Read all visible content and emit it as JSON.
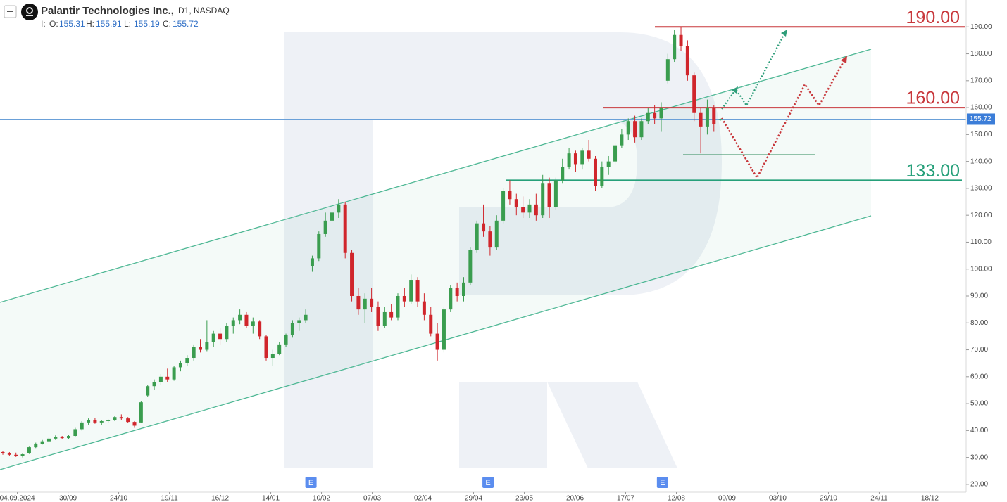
{
  "chart_data": {
    "type": "candlestick",
    "title": "Palantir Technologies Inc.,",
    "interval": "D1,",
    "exchange": "NASDAQ",
    "ohlc_prefix": "I:",
    "ohlc_labels": [
      "O:",
      "H:",
      "L:",
      "C:"
    ],
    "up_color": "#3a9d4f",
    "down_color": "#d0262c",
    "grid": false,
    "candles": [
      [
        32,
        32.5,
        31,
        31.5
      ],
      [
        31.5,
        32,
        30.5,
        31
      ],
      [
        31,
        31.8,
        30.2,
        30.6
      ],
      [
        30.6,
        31.5,
        30,
        31.2
      ],
      [
        31.5,
        34,
        31.3,
        33.8
      ],
      [
        33.8,
        35.5,
        33.5,
        35
      ],
      [
        35,
        36.5,
        34.8,
        36
      ],
      [
        36,
        37.5,
        35.5,
        37
      ],
      [
        37,
        38.2,
        36.5,
        37.5
      ],
      [
        37.5,
        38,
        36.8,
        37.2
      ],
      [
        37.2,
        38.5,
        36.9,
        38
      ],
      [
        38,
        41,
        37.8,
        40.5
      ],
      [
        40.5,
        43.5,
        40,
        43
      ],
      [
        43,
        44.5,
        42.2,
        44
      ],
      [
        44,
        44.8,
        42.5,
        43
      ],
      [
        43,
        44,
        42,
        43.5
      ],
      [
        43.5,
        44.2,
        42.8,
        43.8
      ],
      [
        43.8,
        45.5,
        43.5,
        45
      ],
      [
        45,
        46,
        44,
        44.5
      ],
      [
        44.5,
        45,
        42.8,
        43.2
      ],
      [
        43.2,
        43.5,
        41,
        41.8
      ],
      [
        43,
        51,
        42.8,
        50.5
      ],
      [
        53,
        57,
        52.5,
        56.5
      ],
      [
        56.5,
        59,
        55,
        58
      ],
      [
        58,
        61,
        57,
        60
      ],
      [
        60,
        63,
        58,
        59
      ],
      [
        59,
        64,
        58.5,
        63.5
      ],
      [
        63.5,
        66,
        62,
        65
      ],
      [
        65,
        68,
        64,
        67
      ],
      [
        67,
        72,
        66,
        71
      ],
      [
        71,
        74,
        69,
        70
      ],
      [
        70,
        81,
        69.5,
        73
      ],
      [
        73,
        77,
        71,
        76
      ],
      [
        76,
        78,
        72,
        74
      ],
      [
        74,
        80,
        73,
        79
      ],
      [
        79,
        82,
        76,
        81
      ],
      [
        81,
        85,
        79.5,
        83
      ],
      [
        83,
        84,
        78,
        79
      ],
      [
        79,
        82,
        76,
        80.5
      ],
      [
        80.5,
        81,
        74,
        75
      ],
      [
        75,
        75.5,
        66,
        67
      ],
      [
        67,
        70,
        64,
        68.5
      ],
      [
        68.5,
        73,
        68,
        72
      ],
      [
        72,
        76,
        71,
        75.5
      ],
      [
        75.5,
        81,
        74.5,
        80
      ],
      [
        80,
        82,
        77,
        81
      ],
      [
        81,
        85,
        80,
        83
      ],
      [
        101,
        105,
        99,
        104
      ],
      [
        104,
        114,
        103,
        113
      ],
      [
        113,
        121,
        112,
        118
      ],
      [
        118,
        123,
        116,
        121
      ],
      [
        121,
        126,
        119,
        124
      ],
      [
        124,
        125,
        104,
        106
      ],
      [
        106,
        107,
        88,
        90
      ],
      [
        90,
        93,
        83,
        85
      ],
      [
        85,
        91,
        80,
        89
      ],
      [
        89,
        93,
        84,
        86
      ],
      [
        86,
        88,
        77,
        79
      ],
      [
        79,
        86,
        78,
        84
      ],
      [
        84,
        87,
        81,
        82
      ],
      [
        82,
        91,
        81,
        90
      ],
      [
        90,
        93,
        86,
        88
      ],
      [
        88,
        98,
        87,
        96
      ],
      [
        96,
        97,
        86,
        88
      ],
      [
        88,
        91,
        81,
        83
      ],
      [
        83,
        86,
        75,
        76
      ],
      [
        76,
        80,
        66,
        70
      ],
      [
        70,
        86,
        69,
        85
      ],
      [
        85,
        94,
        84,
        93
      ],
      [
        93,
        95,
        88,
        90
      ],
      [
        90,
        97,
        88,
        95
      ],
      [
        95,
        108,
        94,
        107
      ],
      [
        107,
        118,
        106,
        117
      ],
      [
        117,
        124,
        112,
        114
      ],
      [
        114,
        116,
        105,
        108
      ],
      [
        108,
        120,
        107,
        118
      ],
      [
        118,
        130,
        117,
        129
      ],
      [
        129,
        133,
        124,
        126
      ],
      [
        126,
        128,
        120,
        123
      ],
      [
        123,
        127,
        119,
        121
      ],
      [
        121,
        126,
        119,
        124
      ],
      [
        124,
        128,
        118,
        120
      ],
      [
        120,
        135,
        119,
        132
      ],
      [
        132,
        134,
        119,
        123
      ],
      [
        123,
        134,
        122,
        133
      ],
      [
        133,
        141,
        132,
        138
      ],
      [
        138,
        145,
        137,
        143
      ],
      [
        143,
        144,
        136,
        139
      ],
      [
        139,
        145,
        137,
        144
      ],
      [
        144,
        148,
        140,
        141
      ],
      [
        141,
        142,
        129,
        131
      ],
      [
        131,
        140,
        130,
        138
      ],
      [
        138,
        142,
        135,
        140
      ],
      [
        140,
        147,
        139,
        146
      ],
      [
        146,
        152,
        145,
        150
      ],
      [
        150,
        156,
        148,
        155
      ],
      [
        155,
        157,
        147,
        149
      ],
      [
        149,
        156,
        148,
        155
      ],
      [
        155,
        160,
        154,
        158
      ],
      [
        158,
        161,
        154,
        156
      ],
      [
        156,
        162,
        151,
        160
      ],
      [
        170,
        180,
        169,
        178
      ],
      [
        178,
        189,
        177,
        187
      ],
      [
        187,
        190,
        181,
        183
      ],
      [
        183,
        185,
        170,
        172
      ],
      [
        172,
        173,
        155,
        158
      ],
      [
        158,
        160,
        143,
        153
      ],
      [
        153,
        163,
        150,
        160
      ],
      [
        160,
        161,
        151,
        154
      ],
      [
        155.31,
        155.91,
        155.19,
        155.72
      ]
    ],
    "xlim": [
      -0.43,
      146.1
    ],
    "xticks": [
      {
        "value": 2.2,
        "label": "04.09.2024"
      },
      {
        "value": 9.9,
        "label": "30/09"
      },
      {
        "value": 17.6,
        "label": "24/10"
      },
      {
        "value": 25.3,
        "label": "19/11"
      },
      {
        "value": 33.0,
        "label": "16/12"
      },
      {
        "value": 40.7,
        "label": "14/01"
      },
      {
        "value": 48.4,
        "label": "10/02"
      },
      {
        "value": 56.1,
        "label": "07/03"
      },
      {
        "value": 63.8,
        "label": "02/04"
      },
      {
        "value": 71.5,
        "label": "29/04"
      },
      {
        "value": 79.2,
        "label": "23/05"
      },
      {
        "value": 86.9,
        "label": "20/06"
      },
      {
        "value": 94.6,
        "label": "17/07"
      },
      {
        "value": 102.3,
        "label": "12/08"
      },
      {
        "value": 110.0,
        "label": "09/09"
      },
      {
        "value": 117.7,
        "label": "03/10"
      },
      {
        "value": 125.4,
        "label": "29/10"
      },
      {
        "value": 133.1,
        "label": "24/11"
      },
      {
        "value": 140.8,
        "label": "18/12"
      }
    ],
    "ylim": [
      17.1,
      200
    ],
    "yticks": [
      {
        "value": 20,
        "label": "20.00"
      },
      {
        "value": 30,
        "label": "30.00"
      },
      {
        "value": 40,
        "label": "40.00"
      },
      {
        "value": 50,
        "label": "50.00"
      },
      {
        "value": 60,
        "label": "60.00"
      },
      {
        "value": 70,
        "label": "70.00"
      },
      {
        "value": 80,
        "label": "80.00"
      },
      {
        "value": 90,
        "label": "90.00"
      },
      {
        "value": 100,
        "label": "100.00"
      },
      {
        "value": 110,
        "label": "110.00"
      },
      {
        "value": 120,
        "label": "120.00"
      },
      {
        "value": 130,
        "label": "130.00"
      },
      {
        "value": 140,
        "label": "140.00"
      },
      {
        "value": 150,
        "label": "150.00"
      },
      {
        "value": 160,
        "label": "160.00"
      },
      {
        "value": 170,
        "label": "170.00"
      },
      {
        "value": 180,
        "label": "180.00"
      },
      {
        "value": 190,
        "label": "190.00"
      }
    ],
    "levels": [
      {
        "value": 190,
        "label": "190.00",
        "color": "#c8383c"
      },
      {
        "value": 160,
        "label": "160.00",
        "color": "#c8383c"
      },
      {
        "value": 133,
        "label": "133.00",
        "color": "#26a07a"
      }
    ],
    "events": [
      {
        "x": 46.8,
        "label": "E"
      },
      {
        "x": 73.7,
        "label": "E"
      },
      {
        "x": 100.2,
        "label": "E"
      }
    ]
  }
}
